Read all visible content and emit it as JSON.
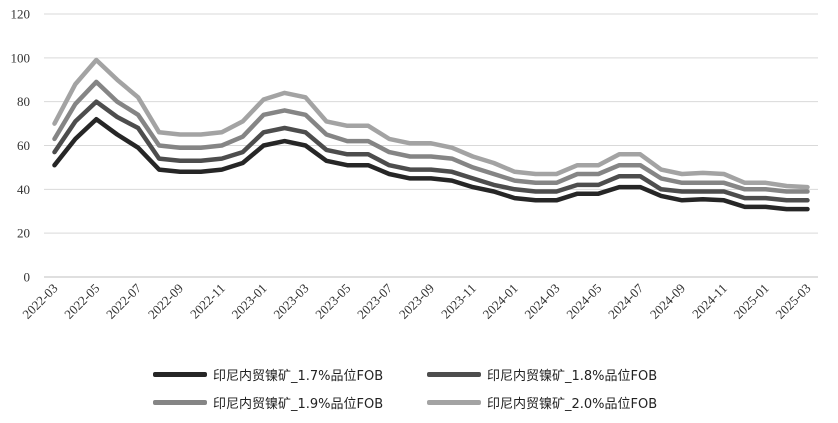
{
  "chart_data": {
    "type": "line",
    "title": "",
    "xlabel": "",
    "ylabel": "",
    "ylim": [
      0,
      120
    ],
    "yticks": [
      0,
      20,
      40,
      60,
      80,
      100,
      120
    ],
    "grid": "horizontal",
    "legend_position": "bottom",
    "x": [
      "2022-03",
      "2022-04",
      "2022-05",
      "2022-06",
      "2022-07",
      "2022-08",
      "2022-09",
      "2022-10",
      "2022-11",
      "2022-12",
      "2023-01",
      "2023-02",
      "2023-03",
      "2023-04",
      "2023-05",
      "2023-06",
      "2023-07",
      "2023-08",
      "2023-09",
      "2023-10",
      "2023-11",
      "2023-12",
      "2024-01",
      "2024-02",
      "2024-03",
      "2024-04",
      "2024-05",
      "2024-06",
      "2024-07",
      "2024-08",
      "2024-09",
      "2024-10",
      "2024-11",
      "2024-12",
      "2025-01",
      "2025-02",
      "2025-03"
    ],
    "xtick_labels": [
      "2022-03",
      "2022-05",
      "2022-07",
      "2022-09",
      "2022-11",
      "2023-01",
      "2023-03",
      "2023-05",
      "2023-07",
      "2023-09",
      "2023-11",
      "2024-01",
      "2024-03",
      "2024-05",
      "2024-07",
      "2024-09",
      "2024-11",
      "2025-01",
      "2025-03"
    ],
    "series": [
      {
        "name": "印尼内贸镍矿_1.7%品位FOB",
        "color": "#262626",
        "values": [
          51,
          63,
          72,
          65,
          59,
          49,
          48,
          48,
          49,
          52,
          60,
          62,
          60,
          53,
          51,
          51,
          47,
          45,
          45,
          44,
          41,
          39,
          36,
          35,
          35,
          38,
          38,
          41,
          41,
          37,
          35,
          35.5,
          35,
          32,
          32,
          31,
          31
        ]
      },
      {
        "name": "印尼内贸镍矿_1.8%品位FOB",
        "color": "#4d4d4d",
        "values": [
          57,
          71,
          80,
          73,
          68,
          54,
          53,
          53,
          54,
          57,
          66,
          68,
          66,
          58,
          56,
          56,
          51,
          49,
          49,
          48,
          45,
          42,
          40,
          39,
          39,
          42,
          42,
          46,
          46,
          40,
          39,
          39,
          39,
          36,
          36,
          35,
          35
        ]
      },
      {
        "name": "印尼内贸镍矿_1.9%品位FOB",
        "color": "#858585",
        "values": [
          63,
          79,
          89,
          80,
          74,
          60,
          59,
          59,
          60,
          64,
          74,
          76,
          74,
          65,
          62,
          62,
          57,
          55,
          55,
          54,
          50,
          47,
          44,
          43,
          43,
          47,
          47,
          51,
          51,
          45,
          43,
          43,
          43,
          40,
          40,
          39,
          39
        ]
      },
      {
        "name": "印尼内贸镍矿_2.0%品位FOB",
        "color": "#a3a3a3",
        "values": [
          70,
          88,
          99,
          90,
          82,
          66,
          65,
          65,
          66,
          71,
          81,
          84,
          82,
          71,
          69,
          69,
          63,
          61,
          61,
          59,
          55,
          52,
          48,
          47,
          47,
          51,
          51,
          56,
          56,
          49,
          47,
          47.5,
          47,
          43,
          43,
          41.5,
          41
        ]
      }
    ]
  }
}
